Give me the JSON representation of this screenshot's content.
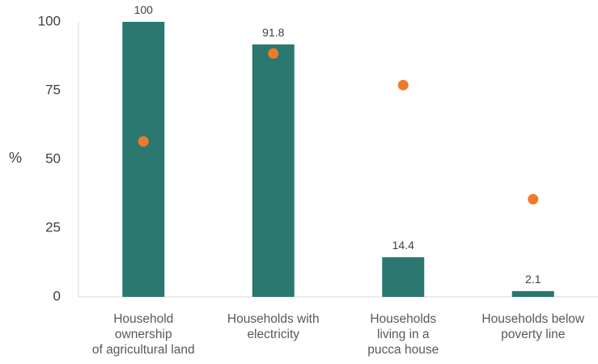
{
  "chart_data": {
    "type": "bar",
    "ylabel": "%",
    "ylim": [
      0,
      100
    ],
    "yticks": [
      "0",
      "25",
      "50",
      "75",
      "100"
    ],
    "categories": [
      [
        "Household",
        "ownership",
        "of agricultural land"
      ],
      [
        "Households with",
        "electricity"
      ],
      [
        "Households",
        "living in a",
        "pucca house"
      ],
      [
        "Households below",
        "poverty line"
      ]
    ],
    "series": [
      {
        "type": "bar",
        "color": "#2a7870",
        "values": [
          100,
          91.8,
          14.4,
          2.1
        ],
        "data_labels": [
          "100",
          "91.8",
          "14.4",
          "2.1"
        ]
      },
      {
        "type": "scatter",
        "color": "#f07a2a",
        "values": [
          56.5,
          88.5,
          77,
          35.5
        ]
      }
    ],
    "grid": false,
    "legend": "none"
  }
}
